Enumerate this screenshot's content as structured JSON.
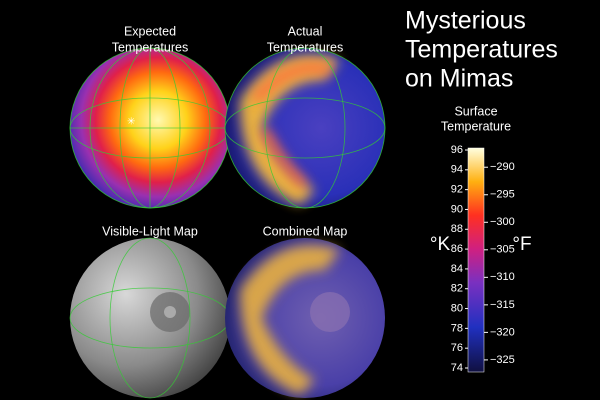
{
  "title": {
    "lines": [
      "Mysterious",
      "Temperatures",
      "on Mimas"
    ]
  },
  "panels": [
    {
      "label": [
        "Expected",
        "Temperatures"
      ]
    },
    {
      "label": [
        "Actual",
        "Temperatures"
      ]
    },
    {
      "label": [
        "Visible-Light Map"
      ]
    },
    {
      "label": [
        "Combined Map"
      ]
    }
  ],
  "colorbar": {
    "label": [
      "Surface",
      "Temperature"
    ],
    "kelvin_unit": "°K",
    "fahrenheit_unit": "°F",
    "kelvin_ticks": [
      96,
      94,
      92,
      90,
      88,
      86,
      84,
      82,
      80,
      78,
      76,
      74
    ],
    "fahrenheit_ticks": [
      {
        "value": -290,
        "label": "−290"
      },
      {
        "value": -295,
        "label": "−295"
      },
      {
        "value": -300,
        "label": "−300"
      },
      {
        "value": -305,
        "label": "−305"
      },
      {
        "value": -310,
        "label": "−310"
      },
      {
        "value": -315,
        "label": "−315"
      },
      {
        "value": -320,
        "label": "−320"
      },
      {
        "value": -325,
        "label": "−325"
      }
    ]
  }
}
